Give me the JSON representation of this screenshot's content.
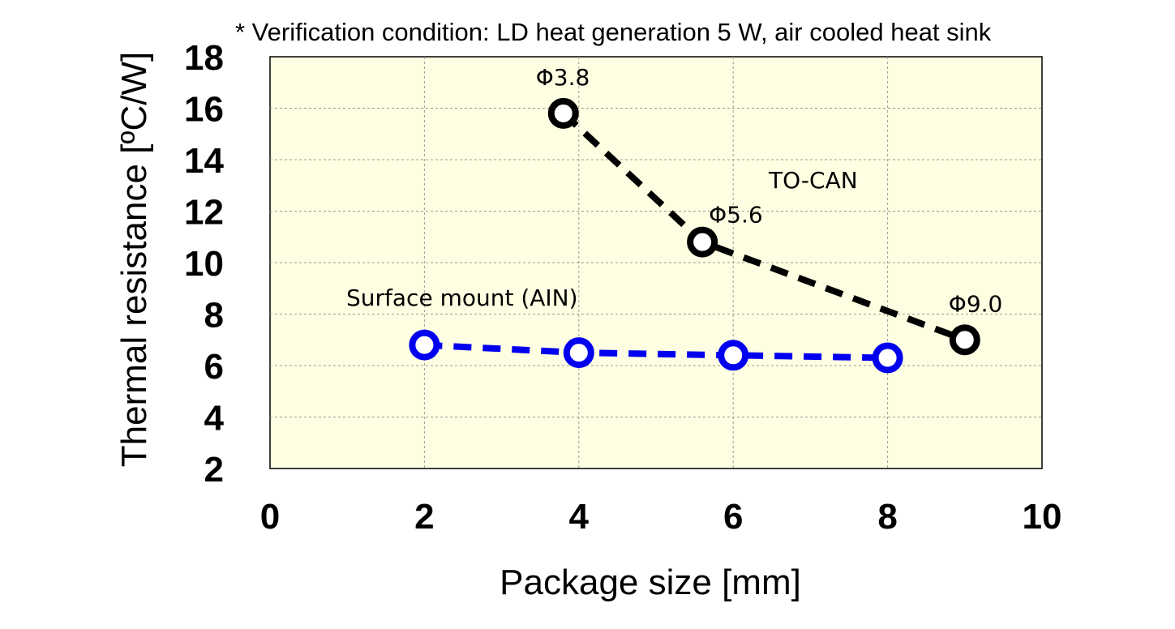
{
  "chart_data": {
    "type": "line",
    "note": "* Verification condition: LD heat generation 5 W, air cooled heat sink",
    "xlabel": "Package size [mm]",
    "ylabel": "Thermal resistance [ºC/W]",
    "xlim": [
      0,
      10
    ],
    "ylim": [
      2,
      18
    ],
    "xticks": [
      "0",
      "2",
      "4",
      "6",
      "8",
      "10"
    ],
    "yticks": [
      "2",
      "4",
      "6",
      "8",
      "10",
      "12",
      "14",
      "16",
      "18"
    ],
    "grid": true,
    "series": [
      {
        "name": "TO-CAN",
        "color": "#000000",
        "x": [
          3.8,
          5.6,
          9.0
        ],
        "y": [
          15.8,
          10.8,
          7.0
        ],
        "point_labels": [
          "Φ3.8",
          "Φ5.6",
          "Φ9.0"
        ]
      },
      {
        "name": "Surface mount (AIN)",
        "color": "#0000ee",
        "x": [
          2,
          4,
          6,
          8
        ],
        "y": [
          6.8,
          6.5,
          6.4,
          6.3
        ]
      }
    ],
    "plot_background": "#fefee2"
  }
}
